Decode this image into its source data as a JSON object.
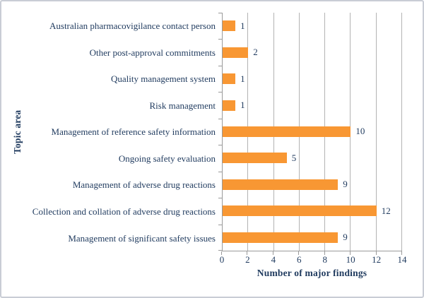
{
  "frame": {
    "border_color": "#c9cdd5",
    "background_color": "#ffffff"
  },
  "chart_data": {
    "type": "bar",
    "orientation": "horizontal",
    "title": "",
    "xlabel": "Number of major findings",
    "ylabel": "Topic area",
    "categories": [
      "Australian pharmacovigilance contact person",
      "Other post-approval commitments",
      "Quality management system",
      "Risk management",
      "Management of reference safety information",
      "Ongoing safety evaluation",
      "Management of adverse drug reactions",
      "Collection and collation of adverse drug reactions",
      "Management of significant safety issues"
    ],
    "values": [
      1,
      2,
      1,
      1,
      10,
      5,
      9,
      12,
      9
    ],
    "data_labels": [
      "1",
      "2",
      "1",
      "1",
      "10",
      "5",
      "9",
      "12",
      "9"
    ],
    "xlim": [
      0,
      14
    ],
    "xticks": [
      0,
      2,
      4,
      6,
      8,
      10,
      12,
      14
    ],
    "grid": true,
    "legend": false,
    "bar_color": "#f89733",
    "gridline_color": "#b3b3b3",
    "axis_color": "#9a9a9a",
    "text_color": "#1f3a5e"
  }
}
